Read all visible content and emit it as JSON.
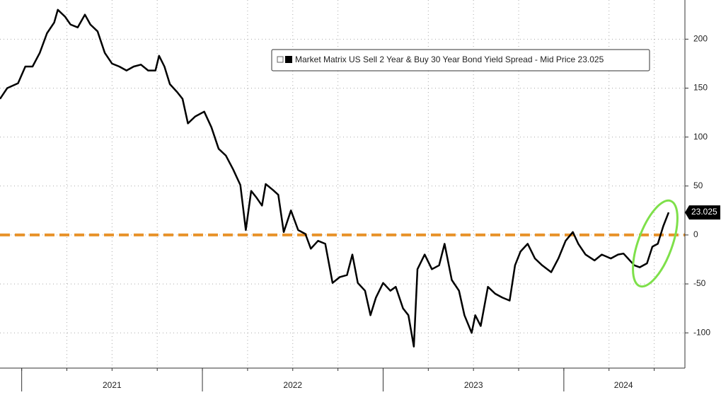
{
  "chart_data": {
    "type": "line",
    "legend_text": "Market Matrix US Sell 2 Year & Buy 30 Year Bond Yield Spread - Mid Price 23.025",
    "x": [
      2020.88,
      2020.92,
      2020.98,
      2021.02,
      2021.06,
      2021.1,
      2021.14,
      2021.18,
      2021.2,
      2021.24,
      2021.27,
      2021.31,
      2021.35,
      2021.38,
      2021.42,
      2021.46,
      2021.5,
      2021.54,
      2021.58,
      2021.62,
      2021.66,
      2021.7,
      2021.74,
      2021.76,
      2021.79,
      2021.82,
      2021.86,
      2021.89,
      2021.92,
      2021.96,
      2022.01,
      2022.05,
      2022.09,
      2022.13,
      2022.17,
      2022.21,
      2022.24,
      2022.27,
      2022.3,
      2022.33,
      2022.35,
      2022.39,
      2022.42,
      2022.45,
      2022.49,
      2022.53,
      2022.57,
      2022.6,
      2022.64,
      2022.68,
      2022.72,
      2022.76,
      2022.8,
      2022.83,
      2022.86,
      2022.9,
      2022.93,
      2022.96,
      2023.0,
      2023.04,
      2023.07,
      2023.11,
      2023.14,
      2023.17,
      2023.19,
      2023.23,
      2023.27,
      2023.31,
      2023.34,
      2023.38,
      2023.42,
      2023.45,
      2023.49,
      2023.51,
      2023.54,
      2023.58,
      2023.62,
      2023.66,
      2023.7,
      2023.73,
      2023.76,
      2023.8,
      2023.84,
      2023.88,
      2023.93,
      2023.97,
      2024.01,
      2024.05,
      2024.08,
      2024.12,
      2024.17,
      2024.21,
      2024.26,
      2024.3,
      2024.33,
      2024.39,
      2024.42,
      2024.46,
      2024.49,
      2024.52,
      2024.55,
      2024.58
    ],
    "series": [
      {
        "name": "Market Matrix US Sell 2 Year & Buy 30 Year Bond Yield Spread - Mid Price",
        "color": "#000000",
        "values": [
          139,
          150,
          155,
          172,
          172,
          186,
          206,
          217,
          230,
          223,
          215,
          212,
          225,
          215,
          208,
          186,
          175,
          172,
          168,
          172,
          174,
          168,
          168,
          183,
          172,
          154,
          146,
          139,
          114,
          121,
          126,
          110,
          88,
          81,
          67,
          51,
          5,
          45,
          38,
          30,
          52,
          46,
          41,
          3,
          25,
          5,
          1,
          -14,
          -6,
          -9,
          -49,
          -43,
          -41,
          -20,
          -49,
          -57,
          -82,
          -64,
          -49,
          -57,
          -53,
          -75,
          -82,
          -114,
          -35,
          -20,
          -35,
          -31,
          -9,
          -46,
          -57,
          -82,
          -100,
          -82,
          -93,
          -53,
          -60,
          -64,
          -67,
          -31,
          -17,
          -9,
          -24,
          -31,
          -38,
          -24,
          -6,
          3,
          -9,
          -20,
          -26,
          -20,
          -24,
          -20,
          -19,
          -31,
          -33,
          -29,
          -12,
          -9,
          9,
          23.025
        ],
        "last_label": "23.025"
      }
    ],
    "xlim": [
      2020.88,
      2024.67
    ],
    "xticks": [
      {
        "value": 2021.5,
        "label": "2021"
      },
      {
        "value": 2022.5,
        "label": "2022"
      },
      {
        "value": 2023.5,
        "label": "2023"
      },
      {
        "value": 2024.33,
        "label": "2024"
      }
    ],
    "ylim": [
      -136,
      240
    ],
    "yticks": [
      -100,
      -50,
      0,
      50,
      100,
      150,
      200
    ],
    "grid": true,
    "reference_line": {
      "value": 0,
      "color": "#e8922a"
    }
  }
}
